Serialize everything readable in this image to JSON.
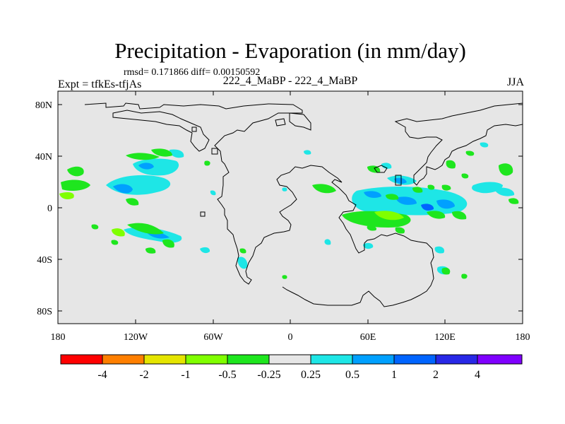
{
  "header": {
    "title": "Precipitation - Evaporation (in mm/day)",
    "stats": "rmsd= 0.171866 diff= 0.00150592",
    "left_label": "Expt = tfkEs-tfjAs",
    "center_label": "222_4_MaBP - 222_4_MaBP",
    "right_label": "JJA"
  },
  "map": {
    "lon_ticks": [
      "180",
      "120W",
      "60W",
      "0",
      "60E",
      "120E",
      "180"
    ],
    "lat_ticks": [
      "80N",
      "40N",
      "0",
      "40S",
      "80S"
    ],
    "background_color": "#e6e6e6"
  },
  "colorbar": {
    "colors": [
      "#ff0000",
      "#ff7f00",
      "#e5e500",
      "#80ff00",
      "#1ee61e",
      "#e6e6e6",
      "#1ee6e6",
      "#00a0ff",
      "#0064ff",
      "#2828e6",
      "#7f00ff"
    ],
    "labels": [
      "-4",
      "-2",
      "-1",
      "-0.5",
      "-0.25",
      "0.25",
      "0.5",
      "1",
      "2",
      "4"
    ]
  }
}
